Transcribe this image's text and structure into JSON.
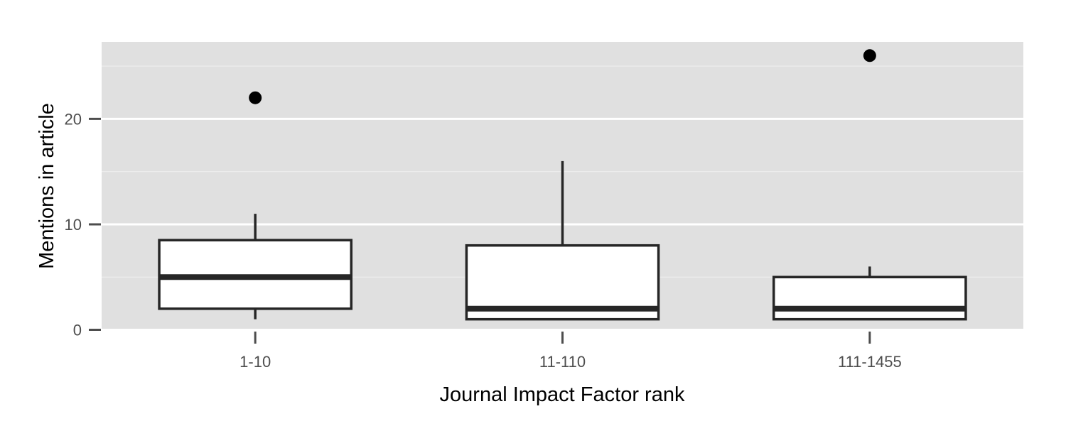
{
  "chart_data": {
    "type": "boxplot",
    "title": "",
    "xlabel": "Journal Impact Factor rank",
    "ylabel": "Mentions in article",
    "categories": [
      "1-10",
      "11-110",
      "111-1455"
    ],
    "boxes": [
      {
        "category": "1-10",
        "whisker_low": 1,
        "q1": 2,
        "median": 5,
        "q3": 8.5,
        "whisker_high": 11,
        "outliers": [
          22
        ]
      },
      {
        "category": "11-110",
        "whisker_low": 1,
        "q1": 1,
        "median": 2,
        "q3": 8,
        "whisker_high": 16,
        "outliers": []
      },
      {
        "category": "111-1455",
        "whisker_low": 1,
        "q1": 1,
        "median": 2,
        "q3": 5,
        "whisker_high": 6,
        "outliers": [
          26
        ]
      }
    ],
    "yticks": [
      0,
      10,
      20
    ],
    "ylim": [
      -0.1,
      27.3
    ],
    "grid": true,
    "colors": {
      "panel_background": "#e0e0e0",
      "gridline": "#ffffff",
      "box_fill": "#ffffff",
      "box_stroke": "#262626",
      "outlier": "#000000",
      "tick": "#4d4d4d"
    }
  }
}
